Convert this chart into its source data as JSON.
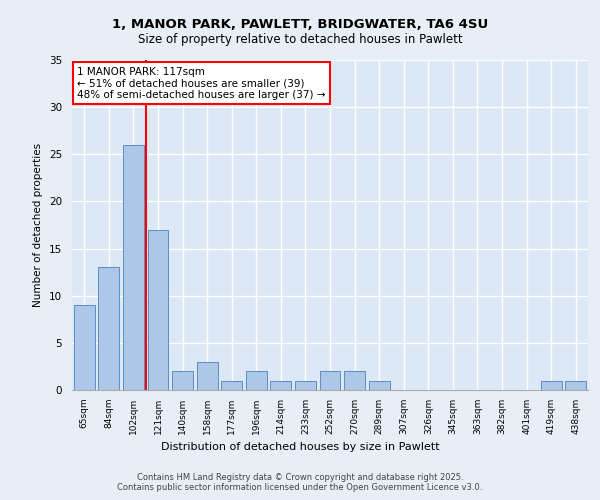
{
  "title_line1": "1, MANOR PARK, PAWLETT, BRIDGWATER, TA6 4SU",
  "title_line2": "Size of property relative to detached houses in Pawlett",
  "xlabel": "Distribution of detached houses by size in Pawlett",
  "ylabel": "Number of detached properties",
  "categories": [
    "65sqm",
    "84sqm",
    "102sqm",
    "121sqm",
    "140sqm",
    "158sqm",
    "177sqm",
    "196sqm",
    "214sqm",
    "233sqm",
    "252sqm",
    "270sqm",
    "289sqm",
    "307sqm",
    "326sqm",
    "345sqm",
    "363sqm",
    "382sqm",
    "401sqm",
    "419sqm",
    "438sqm"
  ],
  "values": [
    9,
    13,
    26,
    17,
    2,
    3,
    1,
    2,
    1,
    1,
    2,
    2,
    1,
    0,
    0,
    0,
    0,
    0,
    0,
    1,
    1
  ],
  "bar_color": "#aec6e8",
  "bar_edge_color": "#5a8fc2",
  "vline_x": 2.5,
  "vline_color": "red",
  "annotation_text": "1 MANOR PARK: 117sqm\n← 51% of detached houses are smaller (39)\n48% of semi-detached houses are larger (37) →",
  "annotation_box_color": "white",
  "annotation_box_edge_color": "red",
  "ylim": [
    0,
    35
  ],
  "yticks": [
    0,
    5,
    10,
    15,
    20,
    25,
    30,
    35
  ],
  "background_color": "#dce8f5",
  "fig_background_color": "#e8eef5",
  "grid_color": "white",
  "footer_line1": "Contains HM Land Registry data © Crown copyright and database right 2025.",
  "footer_line2": "Contains public sector information licensed under the Open Government Licence v3.0."
}
